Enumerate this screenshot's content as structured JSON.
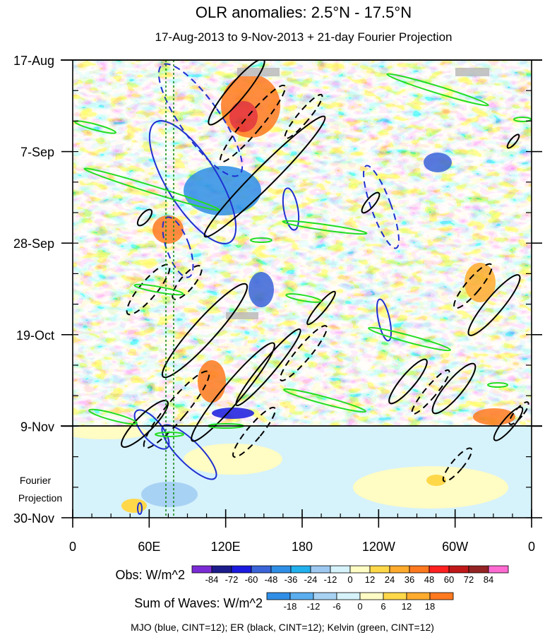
{
  "chart_data": {
    "type": "heatmap",
    "title": "OLR anomalies: 2.5°N - 17.5°N",
    "subtitle": "17-Aug-2013 to 9-Nov-2013 + 21-day Fourier Projection",
    "x_ticks": [
      "0",
      "60E",
      "120E",
      "180",
      "120W",
      "60W",
      "0"
    ],
    "x_range": [
      0,
      360
    ],
    "y_ticks": [
      "17-Aug",
      "7-Sep",
      "28-Sep",
      "19-Oct",
      "9-Nov",
      "30-Nov"
    ],
    "y_range_days": [
      0,
      105
    ],
    "forecast_start_day": 84,
    "projection_label": [
      "Fourier",
      "Projection"
    ],
    "obs_colorbar": {
      "label": "Obs: W/m^2",
      "levels": [
        "-84",
        "-72",
        "-60",
        "-48",
        "-36",
        "-24",
        "-12",
        "0",
        "12",
        "24",
        "36",
        "48",
        "60",
        "72",
        "84"
      ],
      "colors": [
        "#7b2bd6",
        "#1c1c8c",
        "#1a1ae0",
        "#3a64d8",
        "#2f8fe6",
        "#22b0ee",
        "#9dc8f0",
        "#d6f2fb",
        "#fffcc4",
        "#ffd84a",
        "#ffab2e",
        "#ff7a1f",
        "#ff2020",
        "#c01818",
        "#942323",
        "#ff6ad2"
      ]
    },
    "wave_colorbar": {
      "label": "Sum of Waves: W/m^2",
      "levels": [
        "-18",
        "-12",
        "-6",
        "0",
        "6",
        "12",
        "18"
      ],
      "colors": [
        "#2f8fe6",
        "#5aaef0",
        "#a8d2f4",
        "#d6f2fb",
        "#fffcc4",
        "#ffd84a",
        "#ffab2e",
        "#ff7a1f"
      ]
    },
    "legend_note": "MJO (blue, CINT=12); ER (black, CINT=12); Kelvin (green, CINT=12)"
  }
}
